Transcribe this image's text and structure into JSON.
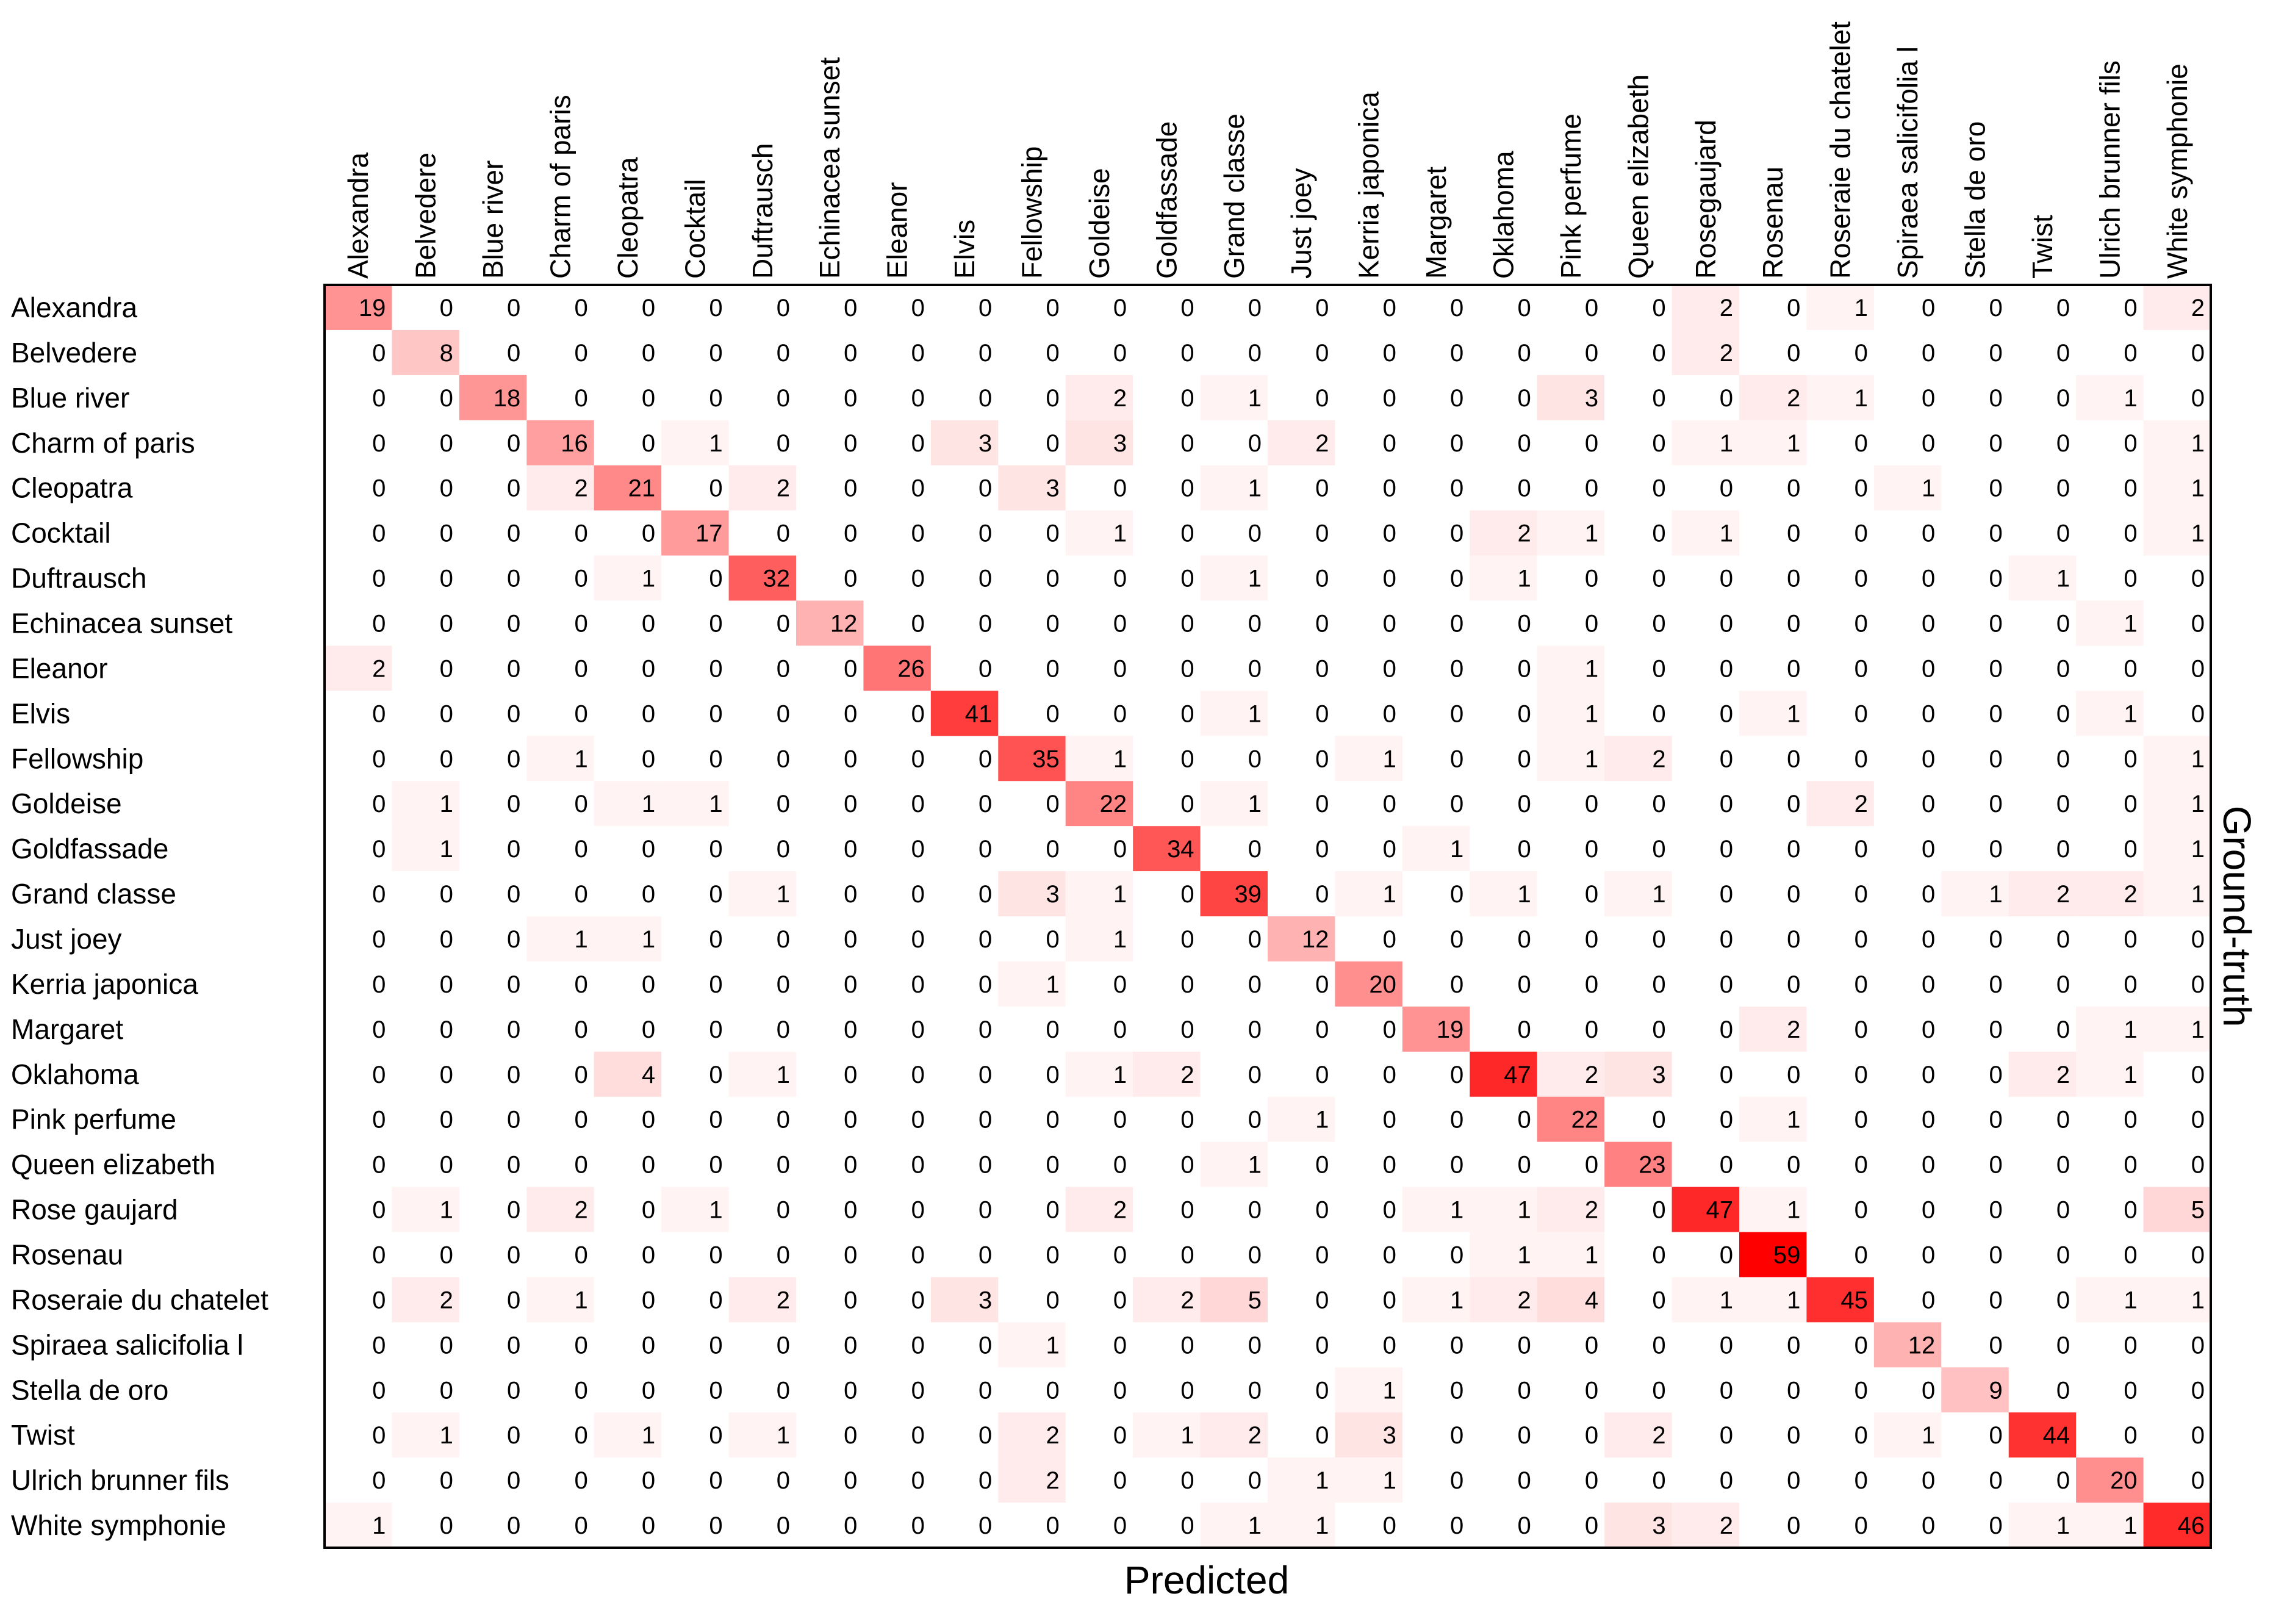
{
  "chart_data": {
    "type": "heatmap",
    "xlabel": "Predicted",
    "ylabel": "Ground-truth",
    "color_low": "#ffffff",
    "color_high": "#ff0000",
    "categories": [
      "Alexandra",
      "Belvedere",
      "Blue river",
      "Charm of paris",
      "Cleopatra",
      "Cocktail",
      "Duftrausch",
      "Echinacea sunset",
      "Eleanor",
      "Elvis",
      "Fellowship",
      "Goldeise",
      "Goldfassade",
      "Grand classe",
      "Just joey",
      "Kerria japonica",
      "Margaret",
      "Oklahoma",
      "Pink perfume",
      "Queen elizabeth",
      "Rose gaujard",
      "Rosenau",
      "Roseraie du chatelet",
      "Spiraea salicifolia l",
      "Stella de oro",
      "Twist",
      "Ulrich brunner fils",
      "White symphonie"
    ],
    "col_labels": [
      "Alexandra",
      "Belvedere",
      "Blue river",
      "Charm of paris",
      "Cleopatra",
      "Cocktail",
      "Duftrausch",
      "Echinacea sunset",
      "Eleanor",
      "Elvis",
      "Fellowship",
      "Goldeise",
      "Goldfassade",
      "Grand classe",
      "Just joey",
      "Kerria japonica",
      "Margaret",
      "Oklahoma",
      "Pink perfume",
      "Queen elizabeth",
      "Rosegaujard",
      "Rosenau",
      "Roseraie du chatelet",
      "Spiraea salicifolia l",
      "Stella de oro",
      "Twist",
      "Ulrich brunner fils",
      "White symphonie"
    ],
    "matrix": [
      [
        19,
        0,
        0,
        0,
        0,
        0,
        0,
        0,
        0,
        0,
        0,
        0,
        0,
        0,
        0,
        0,
        0,
        0,
        0,
        0,
        2,
        0,
        1,
        0,
        0,
        0,
        0,
        2
      ],
      [
        0,
        8,
        0,
        0,
        0,
        0,
        0,
        0,
        0,
        0,
        0,
        0,
        0,
        0,
        0,
        0,
        0,
        0,
        0,
        0,
        2,
        0,
        0,
        0,
        0,
        0,
        0,
        0
      ],
      [
        0,
        0,
        18,
        0,
        0,
        0,
        0,
        0,
        0,
        0,
        0,
        2,
        0,
        1,
        0,
        0,
        0,
        0,
        3,
        0,
        0,
        2,
        1,
        0,
        0,
        0,
        1,
        0
      ],
      [
        0,
        0,
        0,
        16,
        0,
        1,
        0,
        0,
        0,
        3,
        0,
        3,
        0,
        0,
        2,
        0,
        0,
        0,
        0,
        0,
        1,
        1,
        0,
        0,
        0,
        0,
        0,
        1
      ],
      [
        0,
        0,
        0,
        2,
        21,
        0,
        2,
        0,
        0,
        0,
        3,
        0,
        0,
        1,
        0,
        0,
        0,
        0,
        0,
        0,
        0,
        0,
        0,
        1,
        0,
        0,
        0,
        1
      ],
      [
        0,
        0,
        0,
        0,
        0,
        17,
        0,
        0,
        0,
        0,
        0,
        1,
        0,
        0,
        0,
        0,
        0,
        2,
        1,
        0,
        1,
        0,
        0,
        0,
        0,
        0,
        0,
        1
      ],
      [
        0,
        0,
        0,
        0,
        1,
        0,
        32,
        0,
        0,
        0,
        0,
        0,
        0,
        1,
        0,
        0,
        0,
        1,
        0,
        0,
        0,
        0,
        0,
        0,
        0,
        1,
        0,
        0
      ],
      [
        0,
        0,
        0,
        0,
        0,
        0,
        0,
        12,
        0,
        0,
        0,
        0,
        0,
        0,
        0,
        0,
        0,
        0,
        0,
        0,
        0,
        0,
        0,
        0,
        0,
        0,
        1,
        0
      ],
      [
        2,
        0,
        0,
        0,
        0,
        0,
        0,
        0,
        26,
        0,
        0,
        0,
        0,
        0,
        0,
        0,
        0,
        0,
        1,
        0,
        0,
        0,
        0,
        0,
        0,
        0,
        0,
        0
      ],
      [
        0,
        0,
        0,
        0,
        0,
        0,
        0,
        0,
        0,
        41,
        0,
        0,
        0,
        1,
        0,
        0,
        0,
        0,
        1,
        0,
        0,
        1,
        0,
        0,
        0,
        0,
        1,
        0
      ],
      [
        0,
        0,
        0,
        1,
        0,
        0,
        0,
        0,
        0,
        0,
        35,
        1,
        0,
        0,
        0,
        1,
        0,
        0,
        1,
        2,
        0,
        0,
        0,
        0,
        0,
        0,
        0,
        1
      ],
      [
        0,
        1,
        0,
        0,
        1,
        1,
        0,
        0,
        0,
        0,
        0,
        22,
        0,
        1,
        0,
        0,
        0,
        0,
        0,
        0,
        0,
        0,
        2,
        0,
        0,
        0,
        0,
        1
      ],
      [
        0,
        1,
        0,
        0,
        0,
        0,
        0,
        0,
        0,
        0,
        0,
        0,
        34,
        0,
        0,
        0,
        1,
        0,
        0,
        0,
        0,
        0,
        0,
        0,
        0,
        0,
        0,
        1
      ],
      [
        0,
        0,
        0,
        0,
        0,
        0,
        1,
        0,
        0,
        0,
        3,
        1,
        0,
        39,
        0,
        1,
        0,
        1,
        0,
        1,
        0,
        0,
        0,
        0,
        1,
        2,
        2,
        1
      ],
      [
        0,
        0,
        0,
        1,
        1,
        0,
        0,
        0,
        0,
        0,
        0,
        1,
        0,
        0,
        12,
        0,
        0,
        0,
        0,
        0,
        0,
        0,
        0,
        0,
        0,
        0,
        0,
        0
      ],
      [
        0,
        0,
        0,
        0,
        0,
        0,
        0,
        0,
        0,
        0,
        1,
        0,
        0,
        0,
        0,
        20,
        0,
        0,
        0,
        0,
        0,
        0,
        0,
        0,
        0,
        0,
        0,
        0
      ],
      [
        0,
        0,
        0,
        0,
        0,
        0,
        0,
        0,
        0,
        0,
        0,
        0,
        0,
        0,
        0,
        0,
        19,
        0,
        0,
        0,
        0,
        2,
        0,
        0,
        0,
        0,
        1,
        1
      ],
      [
        0,
        0,
        0,
        0,
        4,
        0,
        1,
        0,
        0,
        0,
        0,
        1,
        2,
        0,
        0,
        0,
        0,
        47,
        2,
        3,
        0,
        0,
        0,
        0,
        0,
        2,
        1,
        0
      ],
      [
        0,
        0,
        0,
        0,
        0,
        0,
        0,
        0,
        0,
        0,
        0,
        0,
        0,
        0,
        1,
        0,
        0,
        0,
        22,
        0,
        0,
        1,
        0,
        0,
        0,
        0,
        0,
        0
      ],
      [
        0,
        0,
        0,
        0,
        0,
        0,
        0,
        0,
        0,
        0,
        0,
        0,
        0,
        1,
        0,
        0,
        0,
        0,
        0,
        23,
        0,
        0,
        0,
        0,
        0,
        0,
        0,
        0
      ],
      [
        0,
        1,
        0,
        2,
        0,
        1,
        0,
        0,
        0,
        0,
        0,
        2,
        0,
        0,
        0,
        0,
        1,
        1,
        2,
        0,
        47,
        1,
        0,
        0,
        0,
        0,
        0,
        5
      ],
      [
        0,
        0,
        0,
        0,
        0,
        0,
        0,
        0,
        0,
        0,
        0,
        0,
        0,
        0,
        0,
        0,
        0,
        1,
        1,
        0,
        0,
        59,
        0,
        0,
        0,
        0,
        0,
        0
      ],
      [
        0,
        2,
        0,
        1,
        0,
        0,
        2,
        0,
        0,
        3,
        0,
        0,
        2,
        5,
        0,
        0,
        1,
        2,
        4,
        0,
        1,
        1,
        45,
        0,
        0,
        0,
        1,
        1
      ],
      [
        0,
        0,
        0,
        0,
        0,
        0,
        0,
        0,
        0,
        0,
        1,
        0,
        0,
        0,
        0,
        0,
        0,
        0,
        0,
        0,
        0,
        0,
        0,
        12,
        0,
        0,
        0,
        0
      ],
      [
        0,
        0,
        0,
        0,
        0,
        0,
        0,
        0,
        0,
        0,
        0,
        0,
        0,
        0,
        0,
        1,
        0,
        0,
        0,
        0,
        0,
        0,
        0,
        0,
        9,
        0,
        0,
        0
      ],
      [
        0,
        1,
        0,
        0,
        1,
        0,
        1,
        0,
        0,
        0,
        2,
        0,
        1,
        2,
        0,
        3,
        0,
        0,
        0,
        2,
        0,
        0,
        0,
        1,
        0,
        44,
        0,
        0
      ],
      [
        0,
        0,
        0,
        0,
        0,
        0,
        0,
        0,
        0,
        0,
        2,
        0,
        0,
        0,
        1,
        1,
        0,
        0,
        0,
        0,
        0,
        0,
        0,
        0,
        0,
        0,
        20,
        0
      ],
      [
        1,
        0,
        0,
        0,
        0,
        0,
        0,
        0,
        0,
        0,
        0,
        0,
        0,
        1,
        1,
        0,
        0,
        0,
        0,
        3,
        2,
        0,
        0,
        0,
        0,
        1,
        1,
        46
      ]
    ],
    "max_value": 59,
    "grid": false
  }
}
